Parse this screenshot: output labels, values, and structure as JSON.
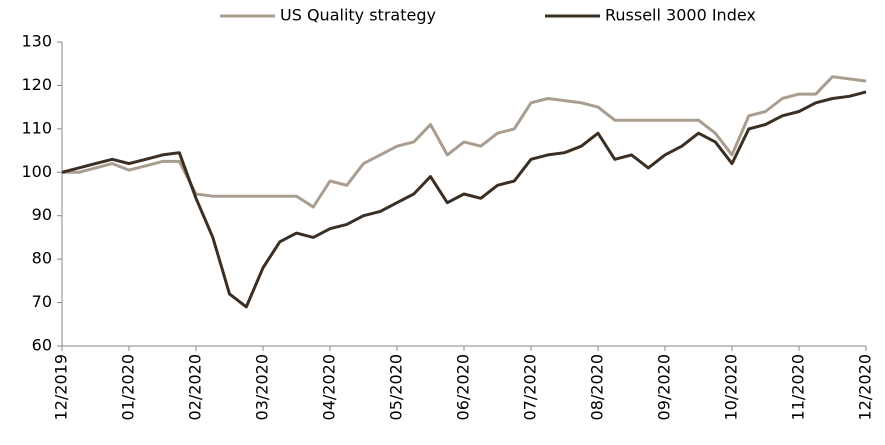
{
  "chart_data": {
    "type": "line",
    "categories": [
      "12/2019",
      null,
      null,
      null,
      "01/2020",
      null,
      null,
      null,
      "02/2020",
      null,
      null,
      null,
      "03/2020",
      null,
      null,
      null,
      "04/2020",
      null,
      null,
      null,
      "05/2020",
      null,
      null,
      null,
      "06/2020",
      null,
      null,
      null,
      "07/2020",
      null,
      null,
      null,
      "08/2020",
      null,
      null,
      null,
      "09/2020",
      null,
      null,
      null,
      "10/2020",
      null,
      null,
      null,
      "11/2020",
      null,
      null,
      null,
      "12/2020"
    ],
    "series": [
      {
        "name": "US Quality strategy",
        "color": "#a89d8f",
        "values": [
          100,
          100,
          101,
          102,
          100.5,
          101.5,
          102.5,
          102.5,
          95,
          94.5,
          94.5,
          94.5,
          94.5,
          94.5,
          94.5,
          92,
          98,
          97,
          102,
          104,
          106,
          107,
          111,
          104,
          107,
          106,
          109,
          110,
          116,
          117,
          116.5,
          116,
          115,
          112,
          112,
          112,
          112,
          112,
          112,
          109,
          104,
          113,
          114,
          117,
          118,
          118,
          122,
          121.5,
          121
        ]
      },
      {
        "name": "Russell 3000 Index",
        "color": "#3b2f24",
        "values": [
          100,
          101,
          102,
          103,
          102,
          103,
          104,
          104.5,
          94,
          85,
          72,
          69,
          78,
          84,
          86,
          85,
          87,
          88,
          90,
          91,
          93,
          95,
          99,
          93,
          95,
          94,
          97,
          98,
          103,
          104,
          104.5,
          106,
          109,
          103,
          104,
          101,
          104,
          106,
          109,
          107,
          102,
          110,
          111,
          113,
          114,
          116,
          117,
          117.5,
          118.5
        ]
      }
    ],
    "ylim": [
      60,
      130
    ],
    "yticks": [
      60,
      70,
      80,
      90,
      100,
      110,
      120,
      130
    ],
    "grid": false,
    "legend": "top"
  }
}
